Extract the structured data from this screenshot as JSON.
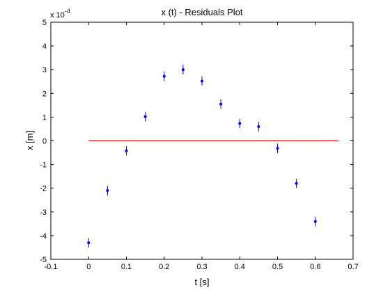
{
  "chart_data": {
    "type": "scatter",
    "title": "x (t) - Residuals Plot",
    "xlabel": "t [s]",
    "ylabel": "x [m]",
    "multiplier_base": "x 10",
    "multiplier_exponent": "-4",
    "xlim": [
      -0.1,
      0.7
    ],
    "ylim": [
      -5,
      5
    ],
    "x_ticks": [
      -0.1,
      0,
      0.1,
      0.2,
      0.3,
      0.4,
      0.5,
      0.6,
      0.7
    ],
    "x_tick_labels": [
      "-0.1",
      "0",
      "0.1",
      "0.2",
      "0.3",
      "0.4",
      "0.5",
      "0.6",
      "0.7"
    ],
    "y_ticks": [
      -5,
      -4,
      -3,
      -2,
      -1,
      0,
      1,
      2,
      3,
      4,
      5
    ],
    "y_tick_labels": [
      "-5",
      "-4",
      "-3",
      "-2",
      "-1",
      "0",
      "1",
      "2",
      "3",
      "4",
      "5"
    ],
    "grid": false,
    "series": [
      {
        "x": [
          0,
          0.05,
          0.1,
          0.15,
          0.2,
          0.25,
          0.3,
          0.35,
          0.4,
          0.45,
          0.5,
          0.55,
          0.6
        ],
        "y": [
          -4.3,
          -2.1,
          -0.42,
          1.02,
          2.72,
          3.0,
          2.52,
          1.55,
          0.73,
          0.6,
          -0.32,
          -1.8,
          -3.4
        ],
        "error": [
          0.2,
          0.2,
          0.2,
          0.2,
          0.2,
          0.2,
          0.2,
          0.2,
          0.2,
          0.2,
          0.2,
          0.2,
          0.2
        ],
        "color": "#0000ff"
      }
    ],
    "reference_line": {
      "x": [
        0,
        0.66
      ],
      "y": [
        0,
        0
      ],
      "color": "#ff0000"
    }
  }
}
